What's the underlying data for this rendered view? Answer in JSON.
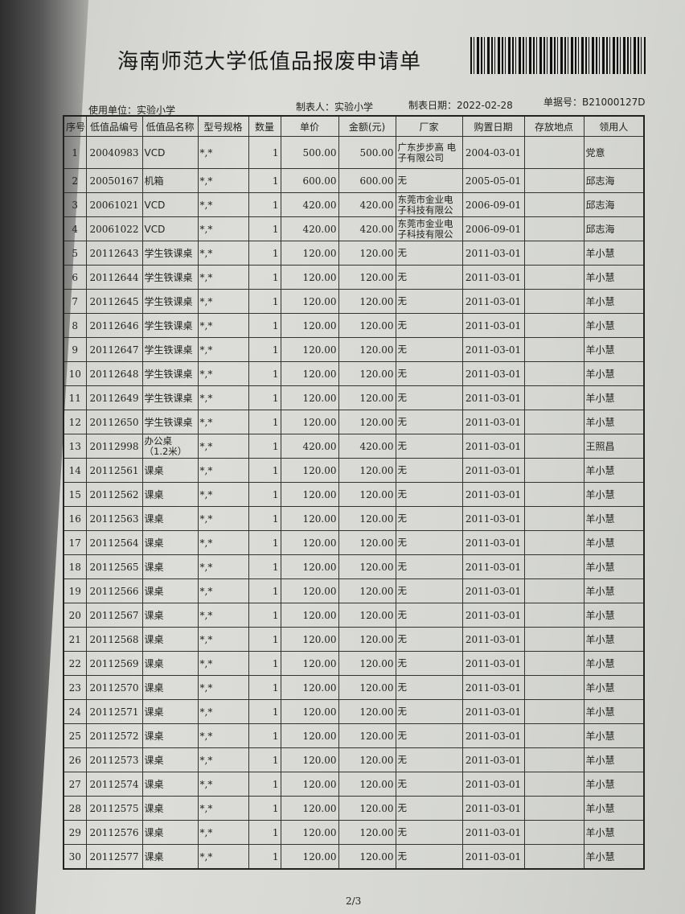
{
  "title": "海南师范大学低值品报废申请单",
  "meta": {
    "unit": "使用单位：实验小学",
    "maker": "制表人：实验小学",
    "date": "制表日期：2022-02-28",
    "doc_no": "单据号：B21000127D"
  },
  "columns": [
    "序号",
    "低值品编号",
    "低值品名称",
    "型号规格",
    "数量",
    "单价",
    "金额(元)",
    "厂家",
    "购置日期",
    "存放地点",
    "领用人"
  ],
  "rows": [
    [
      "1",
      "20040983",
      "VCD",
      "*,*",
      "1",
      "500.00",
      "500.00",
      "广东步步高 电子有限公司",
      "2004-03-01",
      "",
      "党意"
    ],
    [
      "2",
      "20050167",
      "机箱",
      "*,*",
      "1",
      "600.00",
      "600.00",
      "无",
      "2005-05-01",
      "",
      "邱志海"
    ],
    [
      "3",
      "20061021",
      "VCD",
      "*,*",
      "1",
      "420.00",
      "420.00",
      "东莞市金业电子科技有限公",
      "2006-09-01",
      "",
      "邱志海"
    ],
    [
      "4",
      "20061022",
      "VCD",
      "*,*",
      "1",
      "420.00",
      "420.00",
      "东莞市金业电子科技有限公",
      "2006-09-01",
      "",
      "邱志海"
    ],
    [
      "5",
      "20112643",
      "学生铁课桌",
      "*,*",
      "1",
      "120.00",
      "120.00",
      "无",
      "2011-03-01",
      "",
      "羊小慧"
    ],
    [
      "6",
      "20112644",
      "学生铁课桌",
      "*,*",
      "1",
      "120.00",
      "120.00",
      "无",
      "2011-03-01",
      "",
      "羊小慧"
    ],
    [
      "7",
      "20112645",
      "学生铁课桌",
      "*,*",
      "1",
      "120.00",
      "120.00",
      "无",
      "2011-03-01",
      "",
      "羊小慧"
    ],
    [
      "8",
      "20112646",
      "学生铁课桌",
      "*,*",
      "1",
      "120.00",
      "120.00",
      "无",
      "2011-03-01",
      "",
      "羊小慧"
    ],
    [
      "9",
      "20112647",
      "学生铁课桌",
      "*,*",
      "1",
      "120.00",
      "120.00",
      "无",
      "2011-03-01",
      "",
      "羊小慧"
    ],
    [
      "10",
      "20112648",
      "学生铁课桌",
      "*,*",
      "1",
      "120.00",
      "120.00",
      "无",
      "2011-03-01",
      "",
      "羊小慧"
    ],
    [
      "11",
      "20112649",
      "学生铁课桌",
      "*,*",
      "1",
      "120.00",
      "120.00",
      "无",
      "2011-03-01",
      "",
      "羊小慧"
    ],
    [
      "12",
      "20112650",
      "学生铁课桌",
      "*,*",
      "1",
      "120.00",
      "120.00",
      "无",
      "2011-03-01",
      "",
      "羊小慧"
    ],
    [
      "13",
      "20112998",
      "办公桌（1.2米）",
      "*,*",
      "1",
      "420.00",
      "420.00",
      "无",
      "2011-03-01",
      "",
      "王照昌"
    ],
    [
      "14",
      "20112561",
      "课桌",
      "*,*",
      "1",
      "120.00",
      "120.00",
      "无",
      "2011-03-01",
      "",
      "羊小慧"
    ],
    [
      "15",
      "20112562",
      "课桌",
      "*,*",
      "1",
      "120.00",
      "120.00",
      "无",
      "2011-03-01",
      "",
      "羊小慧"
    ],
    [
      "16",
      "20112563",
      "课桌",
      "*,*",
      "1",
      "120.00",
      "120.00",
      "无",
      "2011-03-01",
      "",
      "羊小慧"
    ],
    [
      "17",
      "20112564",
      "课桌",
      "*,*",
      "1",
      "120.00",
      "120.00",
      "无",
      "2011-03-01",
      "",
      "羊小慧"
    ],
    [
      "18",
      "20112565",
      "课桌",
      "*,*",
      "1",
      "120.00",
      "120.00",
      "无",
      "2011-03-01",
      "",
      "羊小慧"
    ],
    [
      "19",
      "20112566",
      "课桌",
      "*,*",
      "1",
      "120.00",
      "120.00",
      "无",
      "2011-03-01",
      "",
      "羊小慧"
    ],
    [
      "20",
      "20112567",
      "课桌",
      "*,*",
      "1",
      "120.00",
      "120.00",
      "无",
      "2011-03-01",
      "",
      "羊小慧"
    ],
    [
      "21",
      "20112568",
      "课桌",
      "*,*",
      "1",
      "120.00",
      "120.00",
      "无",
      "2011-03-01",
      "",
      "羊小慧"
    ],
    [
      "22",
      "20112569",
      "课桌",
      "*,*",
      "1",
      "120.00",
      "120.00",
      "无",
      "2011-03-01",
      "",
      "羊小慧"
    ],
    [
      "23",
      "20112570",
      "课桌",
      "*,*",
      "1",
      "120.00",
      "120.00",
      "无",
      "2011-03-01",
      "",
      "羊小慧"
    ],
    [
      "24",
      "20112571",
      "课桌",
      "*,*",
      "1",
      "120.00",
      "120.00",
      "无",
      "2011-03-01",
      "",
      "羊小慧"
    ],
    [
      "25",
      "20112572",
      "课桌",
      "*,*",
      "1",
      "120.00",
      "120.00",
      "无",
      "2011-03-01",
      "",
      "羊小慧"
    ],
    [
      "26",
      "20112573",
      "课桌",
      "*,*",
      "1",
      "120.00",
      "120.00",
      "无",
      "2011-03-01",
      "",
      "羊小慧"
    ],
    [
      "27",
      "20112574",
      "课桌",
      "*,*",
      "1",
      "120.00",
      "120.00",
      "无",
      "2011-03-01",
      "",
      "羊小慧"
    ],
    [
      "28",
      "20112575",
      "课桌",
      "*,*",
      "1",
      "120.00",
      "120.00",
      "无",
      "2011-03-01",
      "",
      "羊小慧"
    ],
    [
      "29",
      "20112576",
      "课桌",
      "*,*",
      "1",
      "120.00",
      "120.00",
      "无",
      "2011-03-01",
      "",
      "羊小慧"
    ],
    [
      "30",
      "20112577",
      "课桌",
      "*,*",
      "1",
      "120.00",
      "120.00",
      "无",
      "2011-03-01",
      "",
      "羊小慧"
    ]
  ],
  "page": "2/3"
}
